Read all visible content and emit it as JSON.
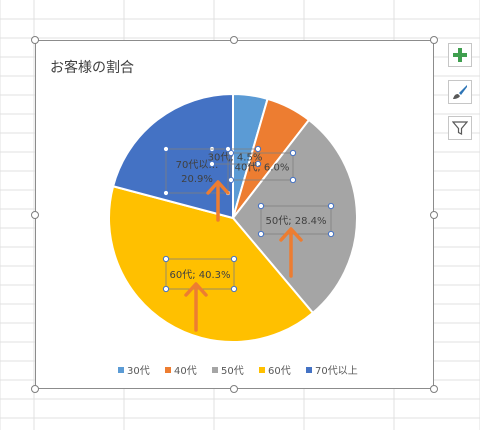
{
  "chart_data": {
    "type": "pie",
    "title": "お客様の割合",
    "categories": [
      "30代",
      "40代",
      "50代",
      "60代",
      "70代以上"
    ],
    "values": [
      4.5,
      6.0,
      28.4,
      40.3,
      20.9
    ],
    "labels": [
      "30代; 4.5%",
      "40代; 6.0%",
      "50代; 28.4%",
      "60代; 40.3%",
      "70代以上; 20.9%"
    ],
    "colors": [
      "#5b9bd5",
      "#ed7d31",
      "#a5a5a5",
      "#ffc000",
      "#4472c4"
    ],
    "legend_position": "bottom",
    "annotations": "orange up arrows pointing at the 70代以上, 50代 and 60代 data labels"
  },
  "chart_tools": {
    "elements_icon": "plus-icon",
    "styles_icon": "paintbrush-icon",
    "filter_icon": "funnel-icon",
    "accent_colors": [
      "#3f9f4f",
      "#2e75b6",
      "#595959"
    ]
  }
}
